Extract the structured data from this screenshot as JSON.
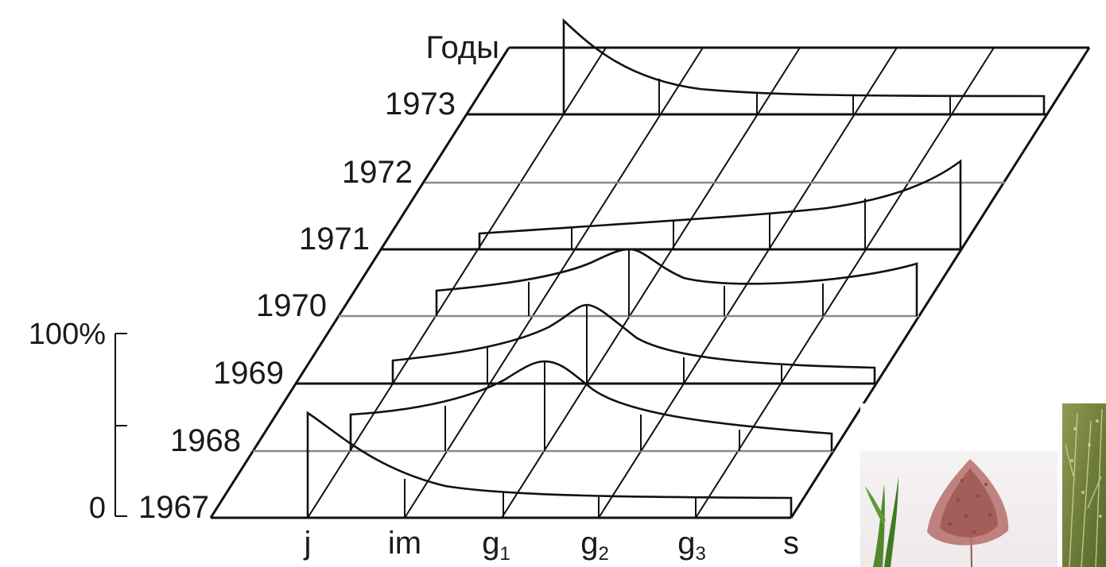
{
  "axis_title": "Годы",
  "years": [
    "1973",
    "1972",
    "1971",
    "1970",
    "1969",
    "1968",
    "1967"
  ],
  "categories": [
    {
      "main": "j",
      "sub": ""
    },
    {
      "main": "im",
      "sub": ""
    },
    {
      "main": "g",
      "sub": "1"
    },
    {
      "main": "g",
      "sub": "2"
    },
    {
      "main": "g",
      "sub": "3"
    },
    {
      "main": "s",
      "sub": ""
    }
  ],
  "scale": {
    "top_label": "100%",
    "bottom_label": "0"
  },
  "colors": {
    "ink": "#111111",
    "grid_grey": "#8a8a8a"
  },
  "decor": {
    "inset_photo_1": "grass-panicle-photo",
    "inset_photo_2": "grass-field-photo"
  }
}
